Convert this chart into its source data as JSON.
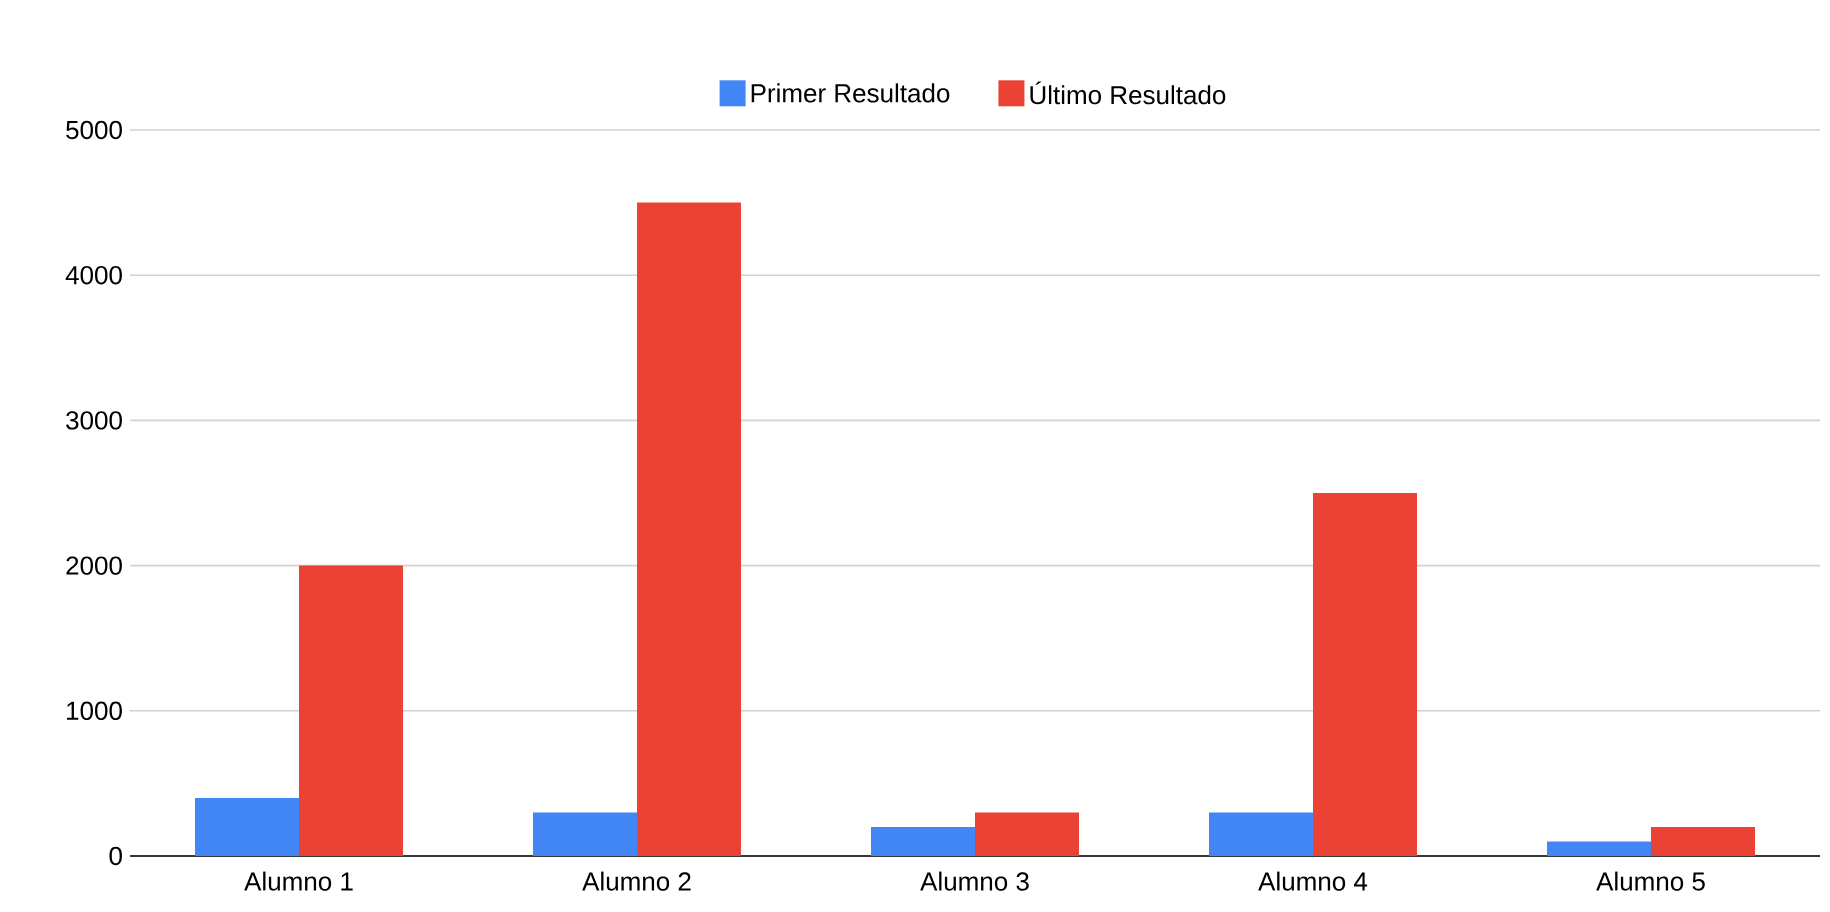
{
  "chart_data": {
    "type": "bar",
    "categories": [
      "Alumno 1",
      "Alumno 2",
      "Alumno 3",
      "Alumno 4",
      "Alumno 5"
    ],
    "series": [
      {
        "name": "Primer Resultado",
        "color": "#4285f4",
        "values": [
          400,
          300,
          200,
          300,
          100
        ]
      },
      {
        "name": "Último Resultado",
        "color": "#ea4335",
        "values": [
          2000,
          4500,
          300,
          2500,
          200
        ]
      }
    ],
    "ylim": [
      0,
      5000
    ],
    "yticks": [
      0,
      1000,
      2000,
      3000,
      4000,
      5000
    ],
    "grid": "y",
    "legend": "top"
  }
}
